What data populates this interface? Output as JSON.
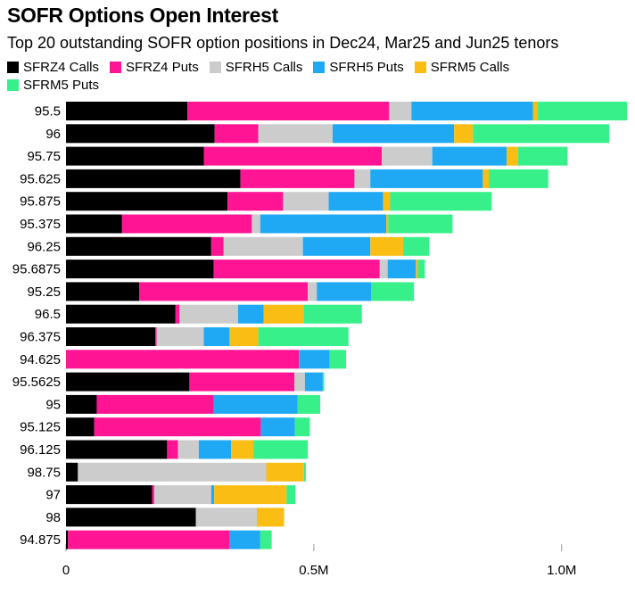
{
  "header": {
    "title": "SOFR Options Open Interest",
    "subtitle": "Top 20 outstanding SOFR option positions in Dec24, Mar25 and Jun25 tenors"
  },
  "chart_data": {
    "type": "bar",
    "orientation": "horizontal",
    "stacked": true,
    "title": "SOFR Options Open Interest",
    "subtitle": "Top 20 outstanding SOFR option positions in Dec24, Mar25 and Jun25 tenors",
    "xlabel": "",
    "ylabel": "",
    "xlim": [
      0,
      1130000
    ],
    "xticks": [
      0,
      500000,
      1000000
    ],
    "xtick_labels": [
      "0",
      "0.5M",
      "1.0M"
    ],
    "legend_position": "top",
    "categories": [
      "95.5",
      "96",
      "95.75",
      "95.625",
      "95.875",
      "95.375",
      "96.25",
      "95.6875",
      "95.25",
      "96.5",
      "96.375",
      "94.625",
      "95.5625",
      "95",
      "95.125",
      "96.125",
      "98.75",
      "97",
      "98",
      "94.875"
    ],
    "series": [
      {
        "name": "SFRZ4 Calls",
        "color": "#000000",
        "values": [
          245000,
          300000,
          278000,
          352000,
          326000,
          113000,
          293000,
          298000,
          148000,
          221000,
          180000,
          0,
          249000,
          62000,
          57000,
          204000,
          24000,
          174000,
          262000,
          4000
        ]
      },
      {
        "name": "SFRZ4 Puts",
        "color": "#ff1493",
        "values": [
          407000,
          88000,
          359000,
          230000,
          112000,
          262000,
          25000,
          335000,
          340000,
          8000,
          3000,
          470000,
          212000,
          236000,
          336000,
          22000,
          0,
          4000,
          0,
          326000
        ]
      },
      {
        "name": "SFRH5 Calls",
        "color": "#cccccc",
        "values": [
          45000,
          150000,
          102000,
          32000,
          92000,
          17000,
          160000,
          16000,
          18000,
          118000,
          95000,
          0,
          21000,
          0,
          0,
          42000,
          380000,
          115000,
          123000,
          0
        ]
      },
      {
        "name": "SFRH5 Puts",
        "color": "#1fa9f5",
        "values": [
          245000,
          245000,
          150000,
          227000,
          110000,
          254000,
          136000,
          57000,
          110000,
          52000,
          52000,
          62000,
          36000,
          169000,
          69000,
          65000,
          0,
          6000,
          0,
          62000
        ]
      },
      {
        "name": "SFRM5 Calls",
        "color": "#f9bd14",
        "values": [
          10000,
          38000,
          23000,
          12000,
          14000,
          4000,
          66000,
          4000,
          0,
          80000,
          58000,
          0,
          0,
          0,
          0,
          45000,
          76000,
          146000,
          55000,
          0
        ]
      },
      {
        "name": "SFRM5 Puts",
        "color": "#38f08a",
        "values": [
          180000,
          275000,
          100000,
          120000,
          205000,
          130000,
          53000,
          14000,
          86000,
          118000,
          182000,
          33000,
          3000,
          46000,
          30000,
          110000,
          4000,
          18000,
          0,
          23000
        ]
      }
    ]
  }
}
